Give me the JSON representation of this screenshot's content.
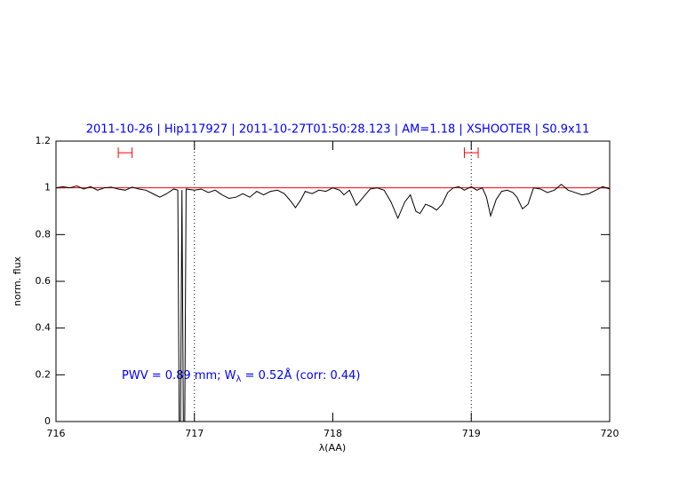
{
  "chart_data": {
    "type": "line",
    "title": "2011-10-26 | Hip117927 | 2011-10-27T01:50:28.123 | AM=1.18 | XSHOOTER | S0.9x11",
    "xlabel": "λ(AA)",
    "ylabel": "norm. flux",
    "annotation": [
      "PWV = 0.89 mm; W",
      "λ",
      " = 0.52Å (corr: 0.44)"
    ],
    "xlim": [
      716,
      720
    ],
    "xticks": [
      716,
      717,
      718,
      719,
      720
    ],
    "ylim": [
      0,
      1.2
    ],
    "yticks": [
      0,
      0.2,
      0.4,
      0.6,
      0.8,
      1,
      1.2
    ],
    "color": "#000000",
    "title_color": "#0000ff",
    "continuum": 1,
    "continuum_color": "#ff0000",
    "vlines": [
      717,
      719
    ],
    "ranges": [
      [
        716.45,
        716.55
      ],
      [
        718.95,
        719.05
      ]
    ],
    "range_level": 1.15,
    "range_color": "#ff0000",
    "x": [
      716.0,
      716.05,
      716.1,
      716.15,
      716.2,
      716.25,
      716.3,
      716.35,
      716.4,
      716.45,
      716.5,
      716.55,
      716.6,
      716.65,
      716.7,
      716.75,
      716.8,
      716.85,
      716.88,
      716.89,
      716.9,
      716.91,
      716.92,
      716.93,
      716.94,
      717.0,
      717.05,
      717.1,
      717.15,
      717.2,
      717.25,
      717.3,
      717.35,
      717.4,
      717.45,
      717.5,
      717.55,
      717.6,
      717.65,
      717.7,
      717.73,
      717.77,
      717.8,
      717.85,
      717.9,
      717.95,
      718.0,
      718.05,
      718.08,
      718.12,
      718.17,
      718.22,
      718.27,
      718.32,
      718.37,
      718.42,
      718.47,
      718.52,
      718.56,
      718.6,
      718.63,
      718.67,
      718.71,
      718.75,
      718.79,
      718.83,
      718.87,
      718.91,
      718.95,
      719.0,
      719.04,
      719.08,
      719.11,
      719.14,
      719.18,
      719.22,
      719.26,
      719.3,
      719.33,
      719.37,
      719.41,
      719.45,
      719.5,
      719.55,
      719.6,
      719.65,
      719.7,
      719.75,
      719.8,
      719.85,
      719.9,
      719.95,
      720.0
    ],
    "values": [
      1.0,
      1.005,
      1.0,
      1.008,
      0.995,
      1.005,
      0.99,
      1.0,
      1.003,
      0.995,
      0.99,
      1.003,
      0.995,
      0.99,
      0.975,
      0.96,
      0.975,
      0.995,
      0.99,
      0.0,
      0.0,
      0.99,
      0.0,
      0.0,
      0.995,
      0.99,
      0.995,
      0.98,
      0.99,
      0.97,
      0.955,
      0.96,
      0.975,
      0.96,
      0.985,
      0.97,
      0.985,
      0.99,
      0.975,
      0.94,
      0.915,
      0.95,
      0.985,
      0.975,
      0.99,
      0.985,
      1.0,
      0.99,
      0.97,
      0.99,
      0.925,
      0.96,
      0.995,
      1.0,
      0.99,
      0.94,
      0.87,
      0.94,
      0.97,
      0.9,
      0.89,
      0.93,
      0.92,
      0.905,
      0.93,
      0.98,
      1.0,
      1.005,
      0.99,
      1.005,
      0.99,
      1.0,
      0.96,
      0.88,
      0.95,
      0.985,
      0.99,
      0.98,
      0.96,
      0.91,
      0.93,
      1.0,
      0.995,
      0.98,
      0.99,
      1.015,
      0.99,
      0.98,
      0.97,
      0.975,
      0.99,
      1.005,
      0.995
    ]
  }
}
